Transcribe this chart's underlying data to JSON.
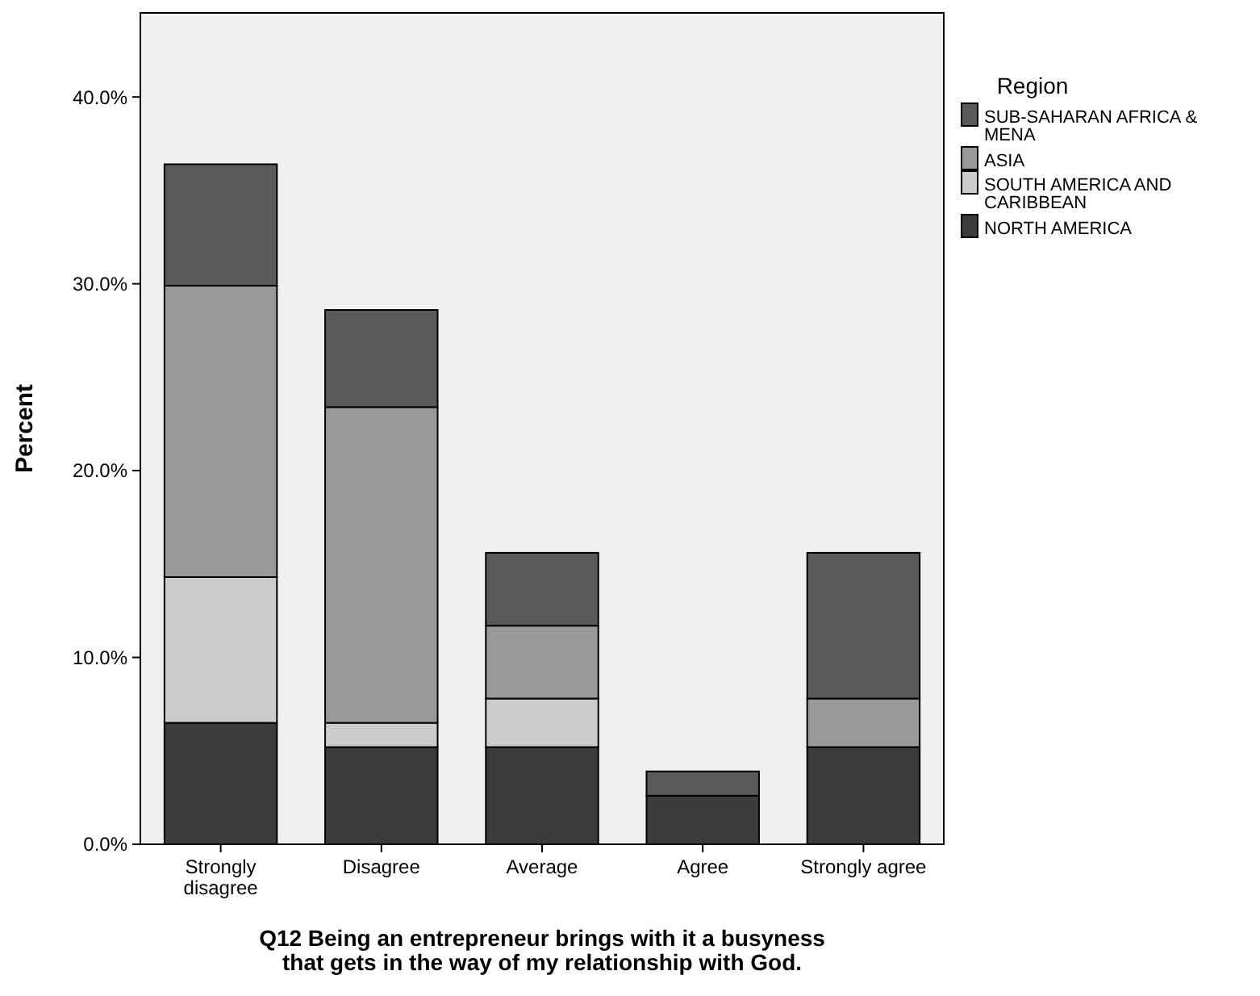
{
  "chart_data": {
    "type": "bar",
    "stacked": true,
    "xlabel": "Q12 Being an entrepreneur brings with it a busyness that gets in the way of my relationship with God.",
    "ylabel": "Percent",
    "legend_title": "Region",
    "legend": "right",
    "grid": false,
    "categories": [
      "Strongly disagree",
      "Disagree",
      "Average",
      "Agree",
      "Strongly agree"
    ],
    "ylim": [
      0,
      44.5
    ],
    "yticks": [
      {
        "value": 0,
        "label": "0.0%"
      },
      {
        "value": 10,
        "label": "10.0%"
      },
      {
        "value": 20,
        "label": "20.0%"
      },
      {
        "value": 30,
        "label": "30.0%"
      },
      {
        "value": 40,
        "label": "40.0%"
      }
    ],
    "series": [
      {
        "name": "NORTH AMERICA",
        "color": "#3c3c3c",
        "values": [
          6.5,
          5.2,
          5.2,
          2.6,
          5.2
        ]
      },
      {
        "name": "SOUTH AMERICA AND CARIBBEAN",
        "color": "#cccccc",
        "values": [
          7.8,
          1.3,
          2.6,
          0,
          0
        ]
      },
      {
        "name": "ASIA",
        "color": "#999999",
        "values": [
          15.6,
          16.9,
          3.9,
          0,
          2.6
        ]
      },
      {
        "name": "SUB-SAHARAN AFRICA & MENA",
        "color": "#5a5a5a",
        "values": [
          6.5,
          5.2,
          3.9,
          1.3,
          7.8
        ]
      }
    ]
  }
}
